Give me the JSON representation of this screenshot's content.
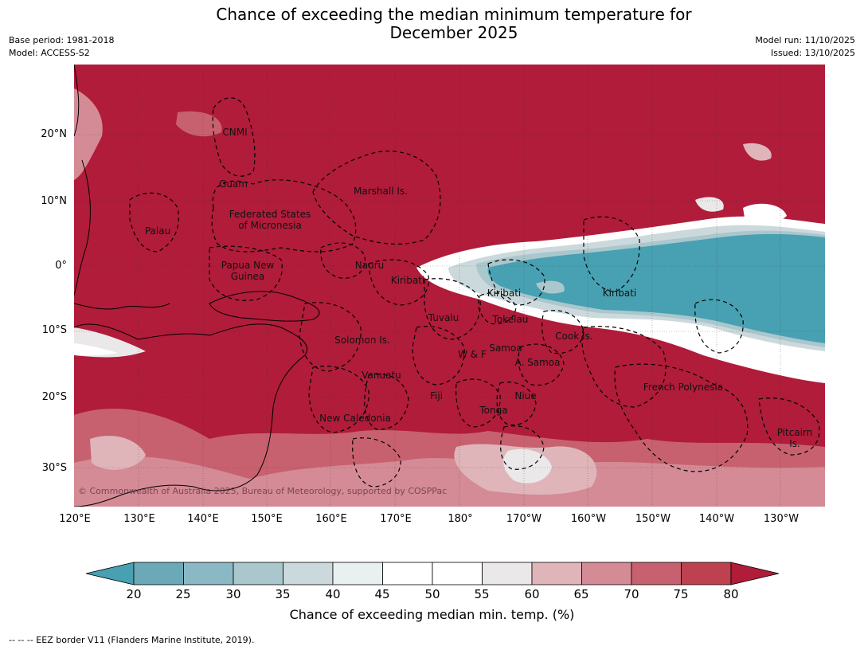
{
  "title_line1": "Chance of exceeding the median minimum temperature for",
  "title_line2": "December 2025",
  "meta_left": [
    "Base period: 1981-2018",
    "Model: ACCESS-S2"
  ],
  "meta_right": [
    "Model run: 11/10/2025",
    "Issued: 13/10/2025"
  ],
  "lat_labels": [
    "20°N",
    "10°N",
    "0°",
    "10°S",
    "20°S",
    "30°S"
  ],
  "lon_labels": [
    "120°E",
    "130°E",
    "140°E",
    "150°E",
    "160°E",
    "170°E",
    "180°",
    "170°W",
    "160°W",
    "150°W",
    "140°W",
    "130°W"
  ],
  "places": [
    "CNMI",
    "Guam",
    "Marshall Is.",
    "Federated States",
    "of Micronesia",
    "Palau",
    "Papua New",
    "Guinea",
    "Nauru",
    "Kiribati",
    "Kiribati",
    "Kiribati",
    "Tuvalu",
    "Tokelau",
    "Cook Is.",
    "Solomon Is.",
    "W & F",
    "Samoa",
    "A. Samoa",
    "Vanuatu",
    "Fiji",
    "Niue",
    "Tonga",
    "French Polynesia",
    "New Caledonia",
    "Pitcairn",
    "Is."
  ],
  "copyright": "© Commonwealth of Australia 2025, Bureau of Meteorology, supported by COSPPac",
  "colorbar": {
    "ticks": [
      "20",
      "25",
      "30",
      "35",
      "40",
      "45",
      "50",
      "55",
      "60",
      "65",
      "70",
      "75",
      "80"
    ],
    "colors": [
      "#6ba9b9",
      "#8ab9c5",
      "#aac7cd",
      "#ccd9dc",
      "#e9f0f0",
      "#ffffff",
      "#ffffff",
      "#ebe8e9",
      "#dfb5ba",
      "#d48b96",
      "#c8616f",
      "#bd414f"
    ],
    "low_color": "#47a1b2",
    "high_color": "#b01c3a",
    "label": "Chance of exceeding median min. temp. (%)"
  },
  "footnote": "-- -- -- EEZ border V11 (Flanders Marine Institute, 2019).",
  "map_colors": {
    "background": "#b01c3a",
    "teal": "#47a1b2",
    "white": "#ffffff"
  }
}
